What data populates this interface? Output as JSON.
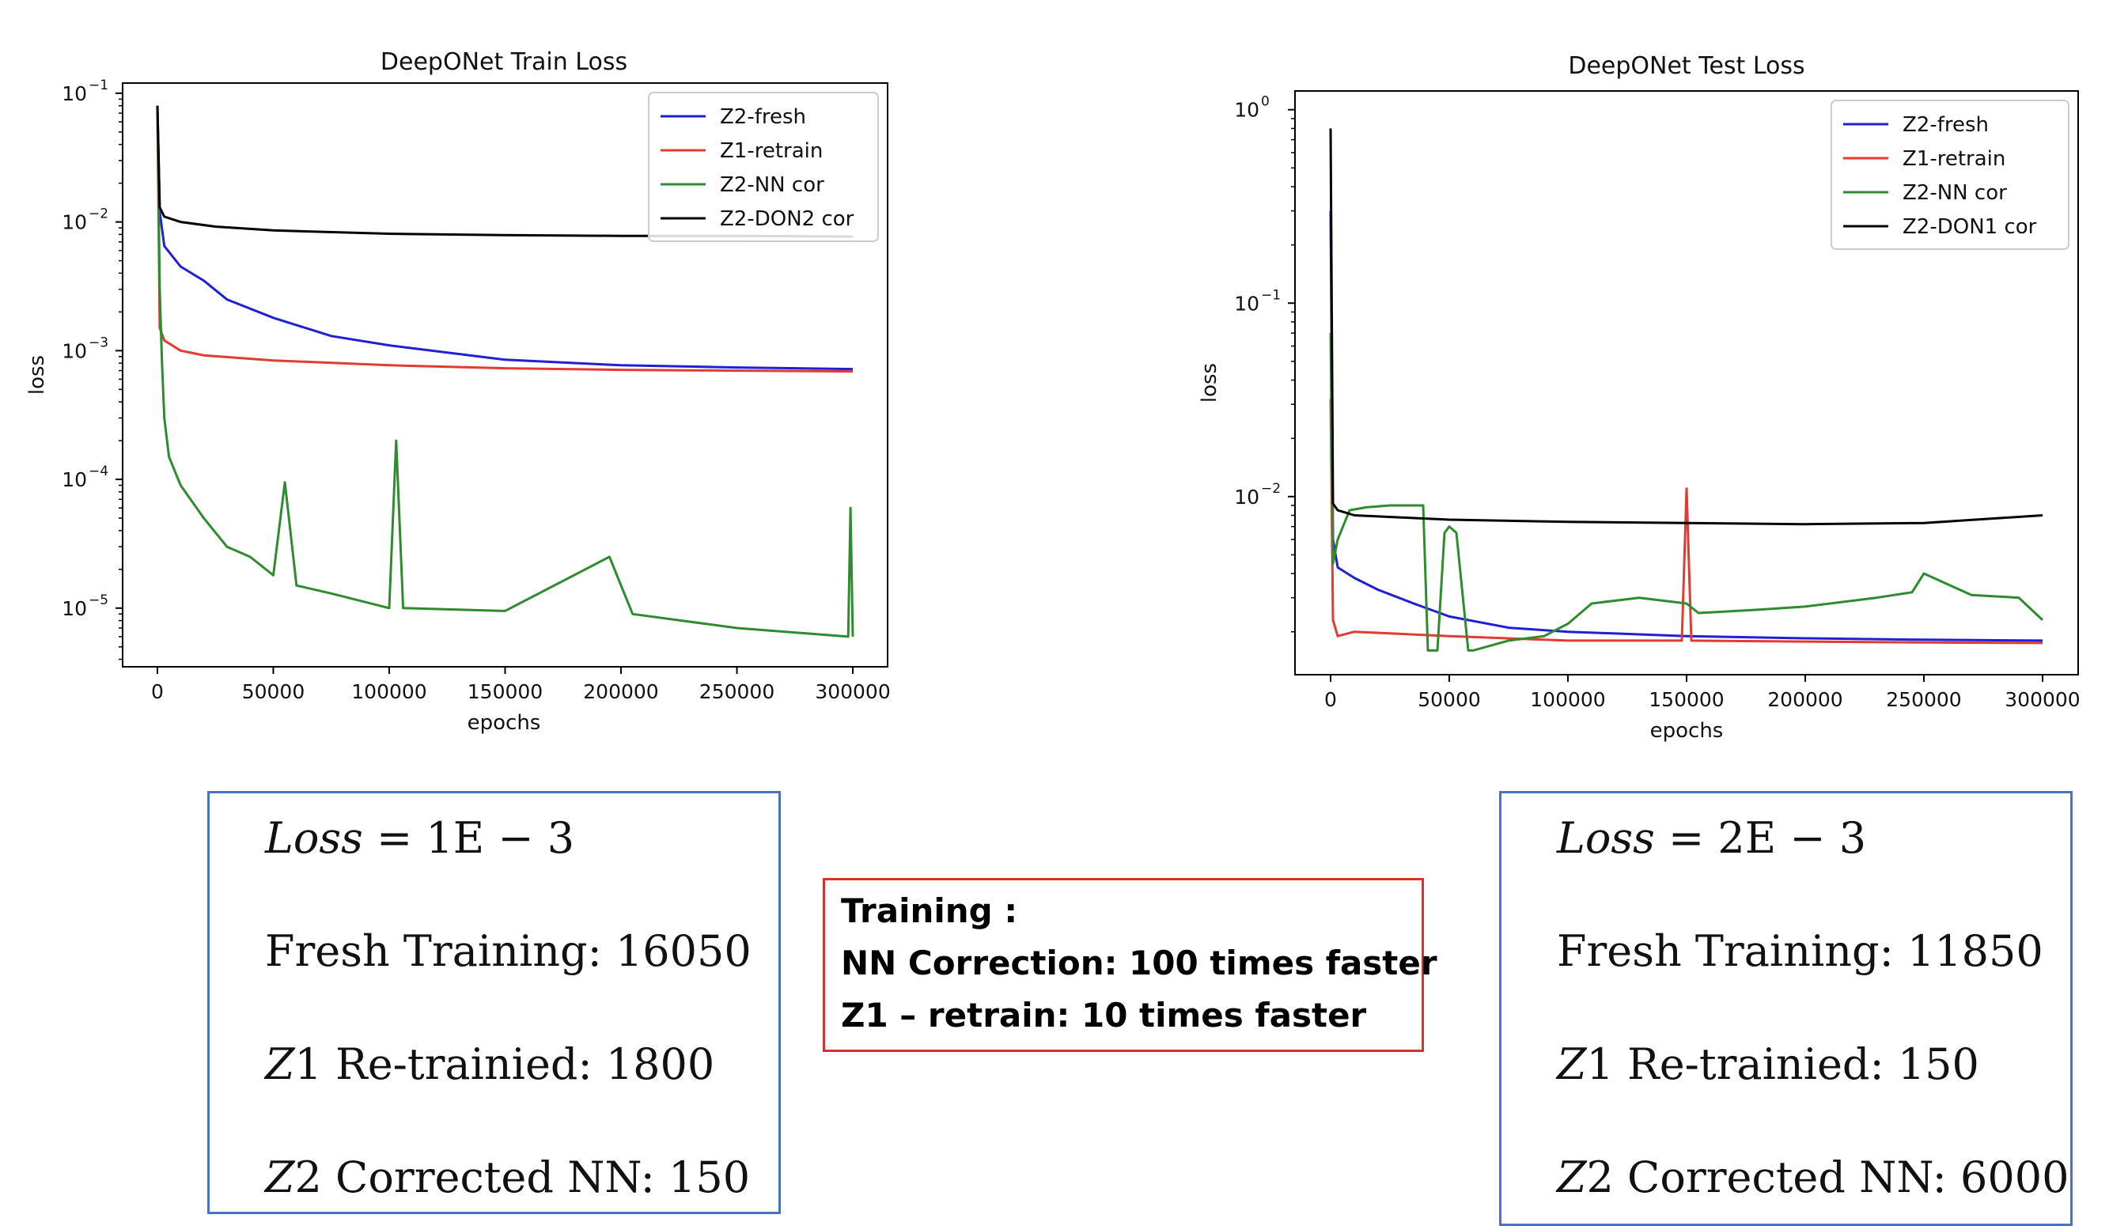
{
  "chart_data": [
    {
      "type": "line",
      "title": "DeepONet Train Loss",
      "xlabel": "epochs",
      "ylabel": "loss",
      "yscale": "log",
      "xlim": [
        -15000,
        315000
      ],
      "ylim": [
        3.5e-06,
        0.12
      ],
      "xticks": [
        0,
        50000,
        100000,
        150000,
        200000,
        250000,
        300000
      ],
      "xtick_labels": [
        "0",
        "50000",
        "100000",
        "150000",
        "200000",
        "250000",
        "300000"
      ],
      "yticks": [
        1e-05,
        0.0001,
        0.001,
        0.01,
        0.1
      ],
      "ytick_labels": [
        [
          "10",
          "−5"
        ],
        [
          "10",
          "−4"
        ],
        [
          "10",
          "−3"
        ],
        [
          "10",
          "−2"
        ],
        [
          "10",
          "−1"
        ]
      ],
      "legend_position": "top-right",
      "series": [
        {
          "name": "Z2-fresh",
          "color": "#1f1fd6",
          "x": [
            0,
            1000,
            3000,
            10000,
            20000,
            30000,
            50000,
            75000,
            100000,
            150000,
            200000,
            250000,
            300000
          ],
          "y": [
            0.08,
            0.012,
            0.0065,
            0.0045,
            0.0035,
            0.0025,
            0.0018,
            0.0013,
            0.0011,
            0.00085,
            0.00077,
            0.00074,
            0.00072
          ]
        },
        {
          "name": "Z1-retrain",
          "color": "#e03c31",
          "x": [
            0,
            1000,
            3000,
            10000,
            20000,
            50000,
            100000,
            150000,
            200000,
            250000,
            300000
          ],
          "y": [
            0.075,
            0.0015,
            0.0012,
            0.001,
            0.00092,
            0.00084,
            0.00077,
            0.00073,
            0.00071,
            0.0007,
            0.00069
          ]
        },
        {
          "name": "Z2-NN cor",
          "color": "#2e8b2e",
          "x": [
            0,
            1000,
            2000,
            3000,
            5000,
            10000,
            20000,
            30000,
            40000,
            50000,
            55000,
            60000,
            75000,
            100000,
            103000,
            106000,
            150000,
            195000,
            205000,
            250000,
            298000,
            299000,
            300000
          ],
          "y": [
            0.075,
            0.003,
            0.0008,
            0.0003,
            0.00015,
            9e-05,
            5e-05,
            3e-05,
            2.5e-05,
            1.8e-05,
            9.5e-05,
            1.5e-05,
            1.3e-05,
            1e-05,
            0.0002,
            1e-05,
            9.5e-06,
            2.5e-05,
            9e-06,
            7e-06,
            6e-06,
            6e-05,
            6e-06
          ]
        },
        {
          "name": "Z2-DON2 cor",
          "color": "#000000",
          "x": [
            0,
            1000,
            3000,
            10000,
            25000,
            50000,
            100000,
            150000,
            200000,
            250000,
            300000
          ],
          "y": [
            0.08,
            0.013,
            0.011,
            0.01,
            0.0092,
            0.0086,
            0.0081,
            0.0079,
            0.0078,
            0.0078,
            0.0077
          ]
        }
      ]
    },
    {
      "type": "line",
      "title": "DeepONet Test Loss",
      "xlabel": "epochs",
      "ylabel": "loss",
      "yscale": "log",
      "xlim": [
        -15000,
        315000
      ],
      "ylim": [
        0.0012,
        1.25
      ],
      "xticks": [
        0,
        50000,
        100000,
        150000,
        200000,
        250000,
        300000
      ],
      "xtick_labels": [
        "0",
        "50000",
        "100000",
        "150000",
        "200000",
        "250000",
        "300000"
      ],
      "yticks": [
        0.01,
        0.1,
        1
      ],
      "ytick_labels": [
        [
          "10",
          "−2"
        ],
        [
          "10",
          "−1"
        ],
        [
          "10",
          "0"
        ]
      ],
      "legend_position": "top-right",
      "series": [
        {
          "name": "Z2-fresh",
          "color": "#1f1fd6",
          "x": [
            0,
            1000,
            3000,
            10000,
            20000,
            35000,
            50000,
            75000,
            100000,
            150000,
            200000,
            250000,
            300000
          ],
          "y": [
            0.3,
            0.006,
            0.0043,
            0.0038,
            0.0033,
            0.0028,
            0.0024,
            0.0021,
            0.002,
            0.0019,
            0.00185,
            0.00182,
            0.0018
          ]
        },
        {
          "name": "Z1-retrain",
          "color": "#e03c31",
          "x": [
            0,
            1000,
            3000,
            10000,
            50000,
            100000,
            148000,
            150000,
            152000,
            200000,
            250000,
            300000
          ],
          "y": [
            0.032,
            0.0023,
            0.0019,
            0.002,
            0.0019,
            0.0018,
            0.0018,
            0.011,
            0.0018,
            0.00178,
            0.00176,
            0.00175
          ]
        },
        {
          "name": "Z2-NN cor",
          "color": "#2e8b2e",
          "x": [
            0,
            1000,
            3000,
            8000,
            15000,
            25000,
            39000,
            41000,
            45000,
            48000,
            50000,
            53000,
            58000,
            60000,
            75000,
            90000,
            100000,
            110000,
            130000,
            150000,
            155000,
            180000,
            200000,
            230000,
            245000,
            250000,
            270000,
            290000,
            300000
          ],
          "y": [
            0.07,
            0.0045,
            0.006,
            0.0085,
            0.0088,
            0.009,
            0.009,
            0.0016,
            0.0016,
            0.0065,
            0.007,
            0.0065,
            0.0016,
            0.0016,
            0.0018,
            0.0019,
            0.0022,
            0.0028,
            0.003,
            0.0028,
            0.0025,
            0.0026,
            0.0027,
            0.003,
            0.0032,
            0.004,
            0.0031,
            0.003,
            0.0023
          ]
        },
        {
          "name": "Z2-DON1 cor",
          "color": "#000000",
          "x": [
            0,
            1000,
            3000,
            10000,
            30000,
            50000,
            100000,
            150000,
            200000,
            250000,
            300000
          ],
          "y": [
            0.8,
            0.0092,
            0.0085,
            0.008,
            0.0078,
            0.0076,
            0.0074,
            0.0073,
            0.0072,
            0.0073,
            0.008
          ]
        }
      ]
    }
  ],
  "left_box": {
    "loss_prefix": "Loss",
    "loss_value": " = 1E − 3",
    "fresh": "Fresh Training:  16050",
    "z1_var": "Z",
    "z1_rest": "1 Re-trainied:  1800",
    "z2_var": "Z",
    "z2_rest": "2 Corrected NN: 150"
  },
  "right_box": {
    "loss_prefix": "Loss",
    "loss_value": " = 2E − 3",
    "fresh": "Fresh Training:  11850",
    "z1_var": "Z",
    "z1_rest": "1 Re-trainied:  150",
    "z2_var": "Z",
    "z2_rest": "2 Corrected NN: 6000"
  },
  "summary_box": {
    "line1": "Training :",
    "line2": "NN Correction: 100 times faster",
    "line3": "Z1 – retrain: 10 times faster"
  }
}
